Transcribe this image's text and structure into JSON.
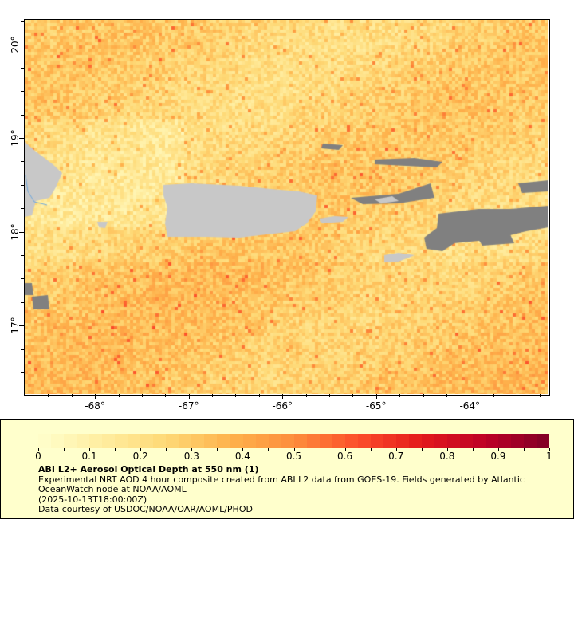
{
  "map": {
    "lon_range": [
      -68.75,
      -63.16
    ],
    "lat_range": [
      16.27,
      20.26
    ],
    "lon_ticks": [
      "-68°",
      "-67°",
      "-66°",
      "-65°",
      "-64°"
    ],
    "lon_tick_values": [
      -68,
      -67,
      -66,
      -65,
      -64
    ],
    "lat_ticks": [
      "20°",
      "19°",
      "18°",
      "17°"
    ],
    "lat_tick_values": [
      20,
      19,
      18,
      17
    ],
    "colors": {
      "land": "#c8c8c8",
      "no_data": "#808080",
      "river": "#6fa8dc"
    }
  },
  "legend": {
    "colorbar_min": 0,
    "colorbar_max": 1,
    "colorbar_labels": [
      "0",
      "0.1",
      "0.2",
      "0.3",
      "0.4",
      "0.5",
      "0.6",
      "0.7",
      "0.8",
      "0.9",
      "1"
    ],
    "colormap_stops": [
      "#ffffcc",
      "#ffeda0",
      "#fed976",
      "#feb24c",
      "#fd8d3c",
      "#fc4e2a",
      "#e31a1c",
      "#bd0026",
      "#800026"
    ],
    "title": "ABI L2+ Aerosol Optical Depth at 550 nm (1)",
    "description": "Experimental NRT AOD 4 hour composite created from ABI L2 data from GOES-19. Fields generated by Atlantic OceanWatch node at NOAA/AOML",
    "time": "(2025-10-13T18:00:00Z)",
    "credit": "Data courtesy of USDOC/NOAA/OAR/AOML/PHOD"
  }
}
